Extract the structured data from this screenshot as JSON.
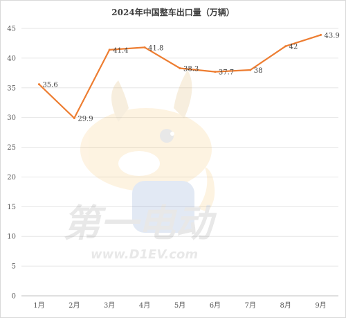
{
  "chart_data": {
    "type": "line",
    "title": "2024年中国整车出口量（万辆）",
    "categories": [
      "1月",
      "2月",
      "3月",
      "4月",
      "5月",
      "6月",
      "7月",
      "8月",
      "9月"
    ],
    "series": [
      {
        "values": [
          35.6,
          29.9,
          41.4,
          41.8,
          38.3,
          37.7,
          38,
          42,
          43.9
        ],
        "color": "#ED7D31"
      }
    ],
    "ylim": [
      0,
      45
    ],
    "yticks": [
      0,
      5,
      10,
      15,
      20,
      25,
      30,
      35,
      40,
      45
    ],
    "grid": true,
    "legend": "none",
    "data_labels": true
  },
  "watermark": {
    "brand": "第一电动",
    "brand_digit": "1",
    "url": "www.D1EV.com"
  }
}
